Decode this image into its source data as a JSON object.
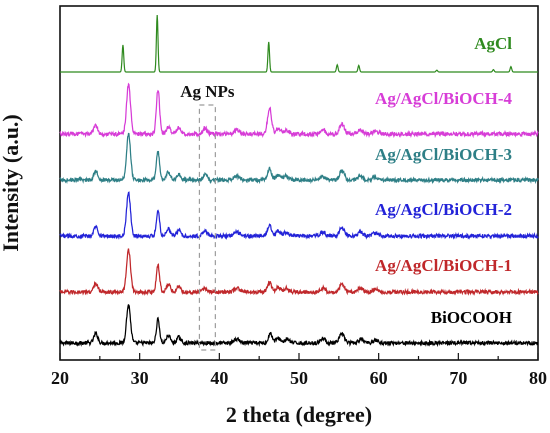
{
  "chart_data": {
    "type": "line",
    "xlabel": "2 theta (degree)",
    "ylabel": "Intensity (a.u.)",
    "xlim": [
      20,
      80
    ],
    "xticks": [
      20,
      30,
      40,
      50,
      60,
      70,
      80
    ],
    "annotation": {
      "label": "Ag NPs",
      "range": [
        37.5,
        39.5
      ]
    },
    "series": [
      {
        "name": "BiOCOOH",
        "color": "#000000",
        "baseline": 0.0,
        "noise": 0.002,
        "peaks": [
          [
            24.5,
            0.01,
            0.25
          ],
          [
            28.6,
            0.04,
            0.25
          ],
          [
            32.3,
            0.025,
            0.2
          ],
          [
            33.6,
            0.008,
            0.25
          ],
          [
            34.9,
            0.006,
            0.25
          ],
          [
            42.2,
            0.004,
            0.35
          ],
          [
            46.4,
            0.01,
            0.25
          ],
          [
            47.4,
            0.005,
            0.3
          ],
          [
            48.5,
            0.004,
            0.3
          ],
          [
            53.0,
            0.005,
            0.3
          ],
          [
            55.4,
            0.01,
            0.3
          ],
          [
            57.8,
            0.004,
            0.3
          ],
          [
            59.6,
            0.003,
            0.35
          ]
        ]
      },
      {
        "name": "Ag/AgCl/BiOCH-1",
        "color": "#c0282b",
        "baseline": 0.2,
        "noise": 0.002,
        "peaks": [
          [
            24.5,
            0.009,
            0.25
          ],
          [
            28.6,
            0.045,
            0.25
          ],
          [
            32.3,
            0.028,
            0.2
          ],
          [
            33.6,
            0.008,
            0.25
          ],
          [
            34.9,
            0.006,
            0.25
          ],
          [
            38.2,
            0.004,
            0.25
          ],
          [
            42.2,
            0.004,
            0.35
          ],
          [
            46.3,
            0.01,
            0.25
          ],
          [
            47.4,
            0.005,
            0.3
          ],
          [
            48.4,
            0.004,
            0.3
          ],
          [
            53.0,
            0.004,
            0.3
          ],
          [
            55.4,
            0.009,
            0.3
          ],
          [
            57.7,
            0.004,
            0.3
          ],
          [
            59.6,
            0.003,
            0.35
          ]
        ]
      },
      {
        "name": "Ag/AgCl/BiOCH-2",
        "color": "#2323d8",
        "baseline": 0.4,
        "noise": 0.002,
        "peaks": [
          [
            24.5,
            0.01,
            0.25
          ],
          [
            28.6,
            0.045,
            0.25
          ],
          [
            32.3,
            0.027,
            0.2
          ],
          [
            33.6,
            0.008,
            0.25
          ],
          [
            34.9,
            0.006,
            0.25
          ],
          [
            38.2,
            0.006,
            0.25
          ],
          [
            42.2,
            0.004,
            0.35
          ],
          [
            46.3,
            0.012,
            0.25
          ],
          [
            47.4,
            0.005,
            0.3
          ],
          [
            48.4,
            0.004,
            0.3
          ],
          [
            53.0,
            0.004,
            0.3
          ],
          [
            55.4,
            0.009,
            0.3
          ],
          [
            57.7,
            0.004,
            0.3
          ],
          [
            59.6,
            0.003,
            0.35
          ]
        ]
      },
      {
        "name": "Ag/AgCl/BiOCH-3",
        "color": "#2e7f86",
        "baseline": 0.6,
        "noise": 0.002,
        "peaks": [
          [
            24.5,
            0.01,
            0.25
          ],
          [
            28.6,
            0.048,
            0.25
          ],
          [
            32.3,
            0.03,
            0.2
          ],
          [
            33.6,
            0.008,
            0.25
          ],
          [
            34.9,
            0.006,
            0.25
          ],
          [
            38.2,
            0.006,
            0.25
          ],
          [
            42.2,
            0.004,
            0.35
          ],
          [
            46.3,
            0.012,
            0.25
          ],
          [
            47.4,
            0.005,
            0.3
          ],
          [
            48.4,
            0.004,
            0.3
          ],
          [
            53.0,
            0.004,
            0.3
          ],
          [
            55.4,
            0.01,
            0.3
          ],
          [
            57.7,
            0.004,
            0.3
          ],
          [
            59.6,
            0.003,
            0.35
          ]
        ]
      },
      {
        "name": "Ag/AgCl/BiOCH-4",
        "color": "#d73dd7",
        "baseline": 0.8,
        "noise": 0.002,
        "peaks": [
          [
            24.5,
            0.009,
            0.25
          ],
          [
            28.6,
            0.049,
            0.25
          ],
          [
            32.3,
            0.045,
            0.2
          ],
          [
            33.6,
            0.007,
            0.25
          ],
          [
            34.9,
            0.006,
            0.25
          ],
          [
            38.2,
            0.006,
            0.25
          ],
          [
            42.2,
            0.004,
            0.35
          ],
          [
            46.3,
            0.026,
            0.25
          ],
          [
            47.4,
            0.005,
            0.3
          ],
          [
            48.4,
            0.004,
            0.3
          ],
          [
            53.0,
            0.004,
            0.3
          ],
          [
            55.4,
            0.01,
            0.3
          ],
          [
            57.7,
            0.004,
            0.3
          ],
          [
            59.6,
            0.003,
            0.35
          ]
        ]
      },
      {
        "name": "AgCl",
        "color": "#2f8a1f",
        "baseline": 1.0,
        "noise": 0.0,
        "peaks": [
          [
            27.9,
            0.045,
            0.1
          ],
          [
            32.2,
            0.095,
            0.1
          ],
          [
            46.2,
            0.05,
            0.1
          ],
          [
            54.8,
            0.012,
            0.1
          ],
          [
            57.5,
            0.011,
            0.1
          ],
          [
            67.3,
            0.003,
            0.1
          ],
          [
            74.4,
            0.004,
            0.1
          ],
          [
            76.6,
            0.009,
            0.1
          ]
        ]
      }
    ]
  }
}
